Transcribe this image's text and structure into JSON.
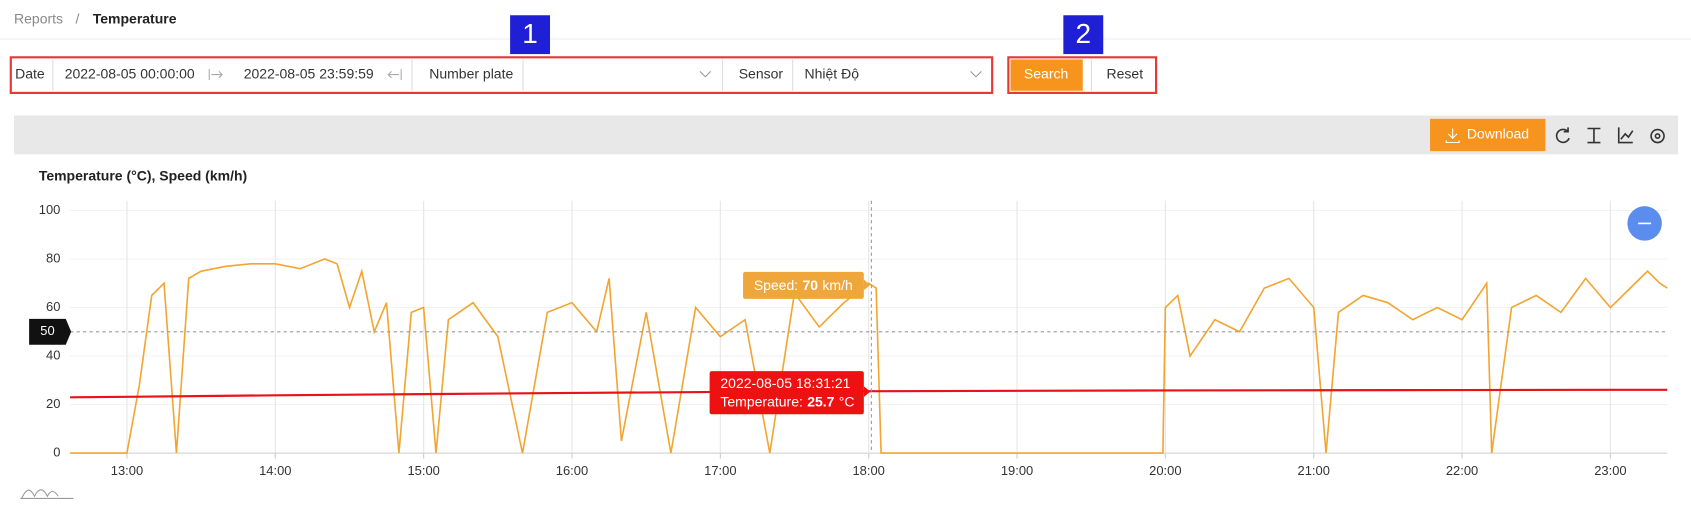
{
  "breadcrumb": {
    "parent": "Reports",
    "separator": "/",
    "current": "Temperature"
  },
  "filters": {
    "date_label": "Date",
    "date_from": "2022-08-05 00:00:00",
    "date_to": "2022-08-05 23:59:59",
    "plate_label": "Number plate",
    "sensor_label": "Sensor",
    "sensor_value": "Nhiệt Độ"
  },
  "buttons": {
    "search": "Search",
    "reset": "Reset",
    "download": "Download"
  },
  "annotations": [
    "1",
    "2"
  ],
  "chart_data": {
    "type": "line",
    "title": "Temperature (°C), Speed (km/h)",
    "xlim": [
      "12:37",
      "23:23"
    ],
    "xticks": [
      "13:00",
      "14:00",
      "15:00",
      "16:00",
      "17:00",
      "18:00",
      "19:00",
      "20:00",
      "21:00",
      "22:00",
      "23:00"
    ],
    "ylim": [
      0,
      100
    ],
    "yticks": [
      0,
      20,
      40,
      60,
      80,
      100
    ],
    "grid": true,
    "series": [
      {
        "color": "#e8121a",
        "x": [
          "12:37",
          "13:00",
          "14:00",
          "15:00",
          "16:00",
          "17:00",
          "18:00",
          "19:00",
          "20:00",
          "21:00",
          "22:00",
          "23:00",
          "23:23"
        ],
        "values": [
          23,
          23.2,
          23.8,
          24.3,
          24.8,
          25.2,
          25.5,
          25.7,
          25.8,
          25.9,
          26.0,
          26.1,
          26.1
        ]
      },
      {
        "color": "#f2a531",
        "x": [
          "12:37",
          "12:50",
          "13:00",
          "13:05",
          "13:10",
          "13:15",
          "13:20",
          "13:25",
          "13:30",
          "13:40",
          "13:50",
          "14:00",
          "14:10",
          "14:20",
          "14:25",
          "14:30",
          "14:35",
          "14:40",
          "14:45",
          "14:50",
          "14:55",
          "15:00",
          "15:05",
          "15:10",
          "15:20",
          "15:30",
          "15:40",
          "15:50",
          "16:00",
          "16:10",
          "16:15",
          "16:20",
          "16:30",
          "16:40",
          "16:50",
          "17:00",
          "17:10",
          "17:20",
          "17:30",
          "17:40",
          "17:50",
          "18:00",
          "18:03",
          "18:05",
          "19:00",
          "19:59",
          "20:00",
          "20:05",
          "20:10",
          "20:20",
          "20:30",
          "20:40",
          "20:50",
          "21:00",
          "21:05",
          "21:10",
          "21:20",
          "21:30",
          "21:40",
          "21:50",
          "22:00",
          "22:10",
          "22:12",
          "22:20",
          "22:30",
          "22:40",
          "22:50",
          "23:00",
          "23:10",
          "23:15",
          "23:20",
          "23:23"
        ],
        "values": [
          0,
          0,
          0,
          28,
          65,
          70,
          0,
          72,
          75,
          77,
          78,
          78,
          76,
          80,
          78,
          60,
          75,
          50,
          62,
          0,
          58,
          60,
          0,
          55,
          62,
          48,
          0,
          58,
          62,
          50,
          72,
          5,
          58,
          0,
          60,
          48,
          55,
          0,
          66,
          52,
          62,
          70,
          68,
          0,
          0,
          0,
          60,
          65,
          40,
          55,
          50,
          68,
          72,
          60,
          0,
          58,
          65,
          62,
          55,
          60,
          55,
          70,
          0,
          60,
          65,
          58,
          72,
          60,
          70,
          75,
          70,
          68
        ]
      }
    ],
    "crosshair_y": 50,
    "tooltips": {
      "speed_label": "Speed:",
      "speed_value": 70,
      "speed_unit": "km/h",
      "time": "2022-08-05 18:31:21",
      "temp_label": "Temperature:",
      "temp_value": 25.7,
      "temp_unit": "°C"
    }
  }
}
